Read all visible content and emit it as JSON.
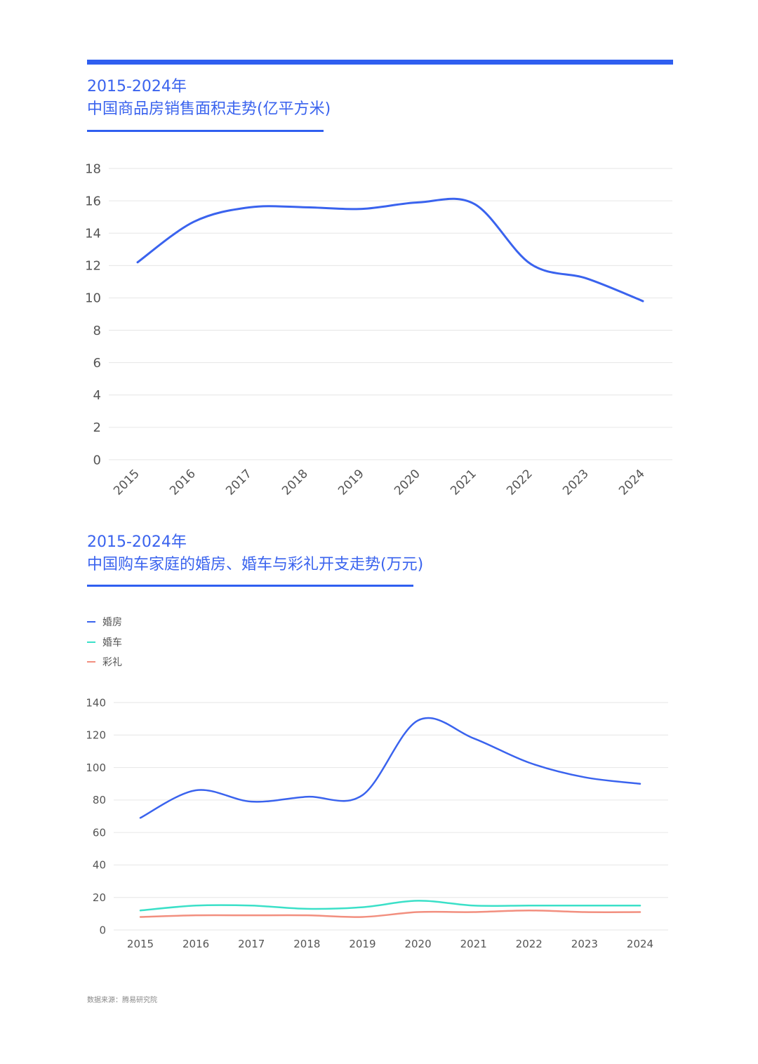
{
  "chart1": {
    "title_line1": "2015-2024年",
    "title_line2": "中国商品房销售面积走势(亿平方米)"
  },
  "chart2": {
    "title_line1": "2015-2024年",
    "title_line2": "中国购车家庭的婚房、婚车与彩礼开支走势(万元)",
    "legend": [
      {
        "label": "婚房",
        "color": "#3a63ee"
      },
      {
        "label": "婚车",
        "color": "#3be0c8"
      },
      {
        "label": "彩礼",
        "color": "#f28f7f"
      }
    ]
  },
  "source": "数据来源：腾易研究院",
  "chart_data": [
    {
      "type": "line",
      "title": "中国商品房销售面积走势(亿平方米)",
      "x": [
        "2015",
        "2016",
        "2017",
        "2018",
        "2019",
        "2020",
        "2021",
        "2022",
        "2023",
        "2024"
      ],
      "series": [
        {
          "color": "#3a63ee",
          "values": [
            12.2,
            14.7,
            15.6,
            15.6,
            15.5,
            15.9,
            15.8,
            12.1,
            11.2,
            9.8
          ]
        }
      ],
      "ylim": [
        0,
        18
      ],
      "yticks": [
        0,
        2,
        4,
        6,
        8,
        10,
        12,
        14,
        16,
        18
      ],
      "grid": true,
      "xlabel_rotation": -45
    },
    {
      "type": "line",
      "title": "中国购车家庭的婚房、婚车与彩礼开支走势(万元)",
      "x": [
        "2015",
        "2016",
        "2017",
        "2018",
        "2019",
        "2020",
        "2021",
        "2022",
        "2023",
        "2024"
      ],
      "series": [
        {
          "name": "婚房",
          "color": "#3a63ee",
          "values": [
            69,
            86,
            79,
            82,
            83,
            129,
            118,
            103,
            94,
            90
          ]
        },
        {
          "name": "婚车",
          "color": "#3be0c8",
          "values": [
            12,
            15,
            15,
            13,
            14,
            18,
            15,
            15,
            15,
            15
          ]
        },
        {
          "name": "彩礼",
          "color": "#f28f7f",
          "values": [
            8,
            9,
            9,
            9,
            8,
            11,
            11,
            12,
            11,
            11
          ]
        }
      ],
      "ylim": [
        0,
        140
      ],
      "yticks": [
        0,
        20,
        40,
        60,
        80,
        100,
        120,
        140
      ],
      "grid": true,
      "legend": "top-left"
    }
  ]
}
